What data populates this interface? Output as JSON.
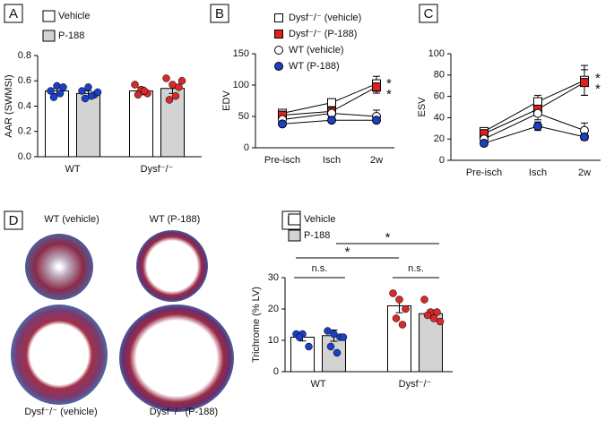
{
  "chart_data": [
    {
      "type": "bar",
      "label": "A",
      "ylabel": "AAR (SWMSI)",
      "categories": [
        "WT",
        "Dysf⁻/⁻"
      ],
      "ylim": [
        0,
        0.8
      ],
      "yticks": [
        {
          "value": 0,
          "label": "0.0"
        },
        0.2,
        0.4,
        0.6,
        0.8
      ],
      "point_colors": [
        "#1d3fc4",
        "#d42a2a"
      ],
      "series": [
        {
          "name": "Vehicle",
          "color": "#ffffff",
          "values": [
            0.52,
            0.52
          ],
          "errors": [
            0.02,
            0.03
          ],
          "points": [
            [
              0.52,
              0.56,
              0.55,
              0.47,
              0.5
            ],
            [
              0.57,
              0.53,
              0.5,
              0.49,
              0.52
            ]
          ]
        },
        {
          "name": "P-188",
          "color": "#d3d3d3",
          "values": [
            0.5,
            0.54
          ],
          "errors": [
            0.02,
            0.04
          ],
          "points": [
            [
              0.52,
              0.55,
              0.49,
              0.46,
              0.48,
              0.51
            ],
            [
              0.62,
              0.57,
              0.55,
              0.45,
              0.48,
              0.6
            ]
          ]
        }
      ]
    },
    {
      "type": "line",
      "label": "B",
      "ylabel": "EDV",
      "categories": [
        "Pre-isch",
        "Isch",
        "2w"
      ],
      "ylim": [
        0,
        150
      ],
      "yticks": [
        0,
        50,
        100,
        150
      ],
      "annotations": [
        "*",
        "*"
      ],
      "series": [
        {
          "name": "Dysf⁻/⁻ (vehicle)",
          "color": "#ffffff",
          "marker": "square",
          "values": [
            55,
            72,
            102
          ],
          "errors": [
            5,
            6,
            12
          ]
        },
        {
          "name": "Dysf⁻/⁻ (P-188)",
          "color": "#e02020",
          "marker": "square",
          "values": [
            52,
            58,
            97
          ],
          "errors": [
            4,
            5,
            10
          ]
        },
        {
          "name": "WT (vehicle)",
          "color": "#ffffff",
          "marker": "circle",
          "values": [
            45,
            55,
            50
          ],
          "errors": [
            4,
            5,
            10
          ]
        },
        {
          "name": "WT (P-188)",
          "color": "#1d3fc4",
          "marker": "circle",
          "values": [
            38,
            44,
            44
          ],
          "errors": [
            3,
            4,
            4
          ]
        }
      ]
    },
    {
      "type": "line",
      "label": "C",
      "ylabel": "ESV",
      "categories": [
        "Pre-isch",
        "Isch",
        "2w"
      ],
      "ylim": [
        0,
        100
      ],
      "yticks": [
        0,
        20,
        40,
        60,
        80,
        100
      ],
      "annotations": [
        "*",
        "*"
      ],
      "series": [
        {
          "color": "#ffffff",
          "marker": "square",
          "values": [
            27,
            55,
            75
          ],
          "errors": [
            3,
            6,
            14
          ]
        },
        {
          "color": "#e02020",
          "marker": "square",
          "values": [
            25,
            48,
            73
          ],
          "errors": [
            3,
            5,
            12
          ]
        },
        {
          "color": "#ffffff",
          "marker": "circle",
          "values": [
            20,
            44,
            28
          ],
          "errors": [
            3,
            6,
            7
          ]
        },
        {
          "color": "#1d3fc4",
          "marker": "circle",
          "values": [
            16,
            32,
            22
          ],
          "errors": [
            2,
            4,
            3
          ]
        }
      ]
    },
    {
      "type": "images",
      "label": "D",
      "captions": [
        "WT (vehicle)",
        "WT (P-188)",
        "Dysf⁻/⁻ (vehicle)",
        "Dysf⁻/⁻ (P-188)"
      ]
    },
    {
      "type": "bar",
      "label": "E",
      "ylabel": "Trichrome (% LV)",
      "categories": [
        "WT",
        "Dysf⁻/⁻"
      ],
      "ylim": [
        0,
        30
      ],
      "yticks": [
        0,
        10,
        20,
        30
      ],
      "point_colors": [
        "#1d3fc4",
        "#d42a2a"
      ],
      "comparisons": [
        "n.s.",
        "n.s.",
        "*",
        "*"
      ],
      "series": [
        {
          "name": "Vehicle",
          "color": "#ffffff",
          "values": [
            11,
            21
          ],
          "errors": [
            1.2,
            2.2
          ],
          "points": [
            [
              12,
              12,
              8,
              11
            ],
            [
              25,
              23,
              20,
              17,
              15
            ]
          ]
        },
        {
          "name": "P-188",
          "color": "#d3d3d3",
          "values": [
            11.5,
            18.5
          ],
          "errors": [
            1.8,
            1.2
          ],
          "points": [
            [
              13,
              12,
              11,
              8,
              6,
              11
            ],
            [
              23,
              19,
              19,
              18,
              17,
              16
            ]
          ]
        }
      ]
    }
  ]
}
